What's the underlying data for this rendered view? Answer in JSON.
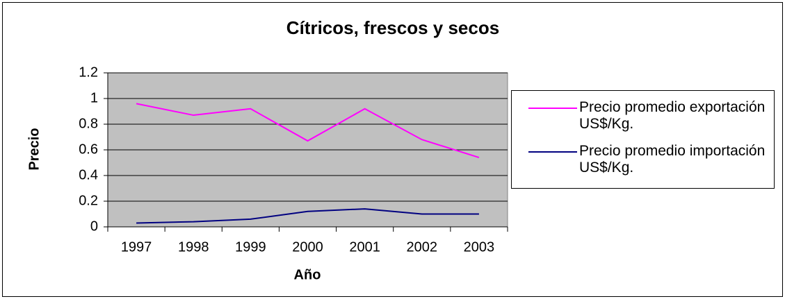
{
  "chart_data": {
    "type": "line",
    "title": "Cítricos, frescos y secos",
    "x_label": "Año",
    "y_label": "Precio",
    "categories": [
      "1997",
      "1998",
      "1999",
      "2000",
      "2001",
      "2002",
      "2003"
    ],
    "series": [
      {
        "name": "Precio promedio exportación US$/Kg.",
        "color": "#ff00ff",
        "values": [
          0.96,
          0.87,
          0.92,
          0.67,
          0.92,
          0.68,
          0.54
        ]
      },
      {
        "name": "Precio promedio importación US$/Kg.",
        "color": "#000080",
        "values": [
          0.03,
          0.04,
          0.06,
          0.12,
          0.14,
          0.1,
          0.1
        ]
      }
    ],
    "ylim": [
      0,
      1.2
    ],
    "yticks": [
      0,
      0.2,
      0.4,
      0.6,
      0.8,
      1,
      1.2
    ],
    "grid": true,
    "plot_background": "#c0c0c0",
    "legend": "right"
  }
}
